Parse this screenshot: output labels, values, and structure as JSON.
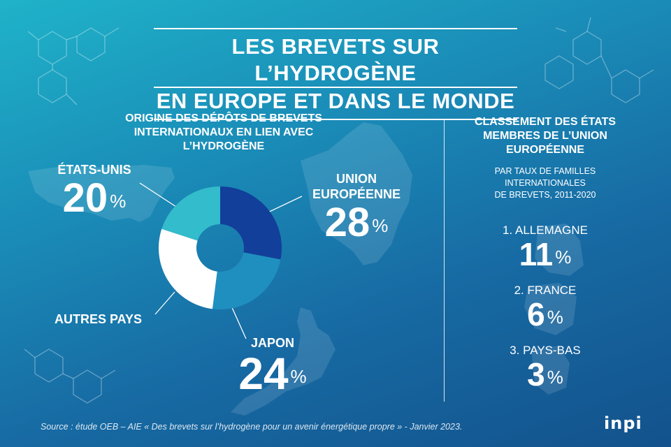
{
  "title": {
    "line1": "LES BREVETS SUR L’HYDROGÈNE",
    "line2": "EN EUROPE ET DANS LE MONDE"
  },
  "chart_data": {
    "type": "pie",
    "title": "ORIGINE DES DÉPÔTS DE BREVETS INTERNATIONAUX EN LIEN AVEC L’HYDROGÈNE",
    "title_lines": [
      "ORIGINE DES DÉPÔTS DE BREVETS",
      "INTERNATIONAUX EN LIEN AVEC",
      "L’HYDROGÈNE"
    ],
    "categories": [
      "UNION EUROPÉENNE",
      "JAPON",
      "AUTRES PAYS",
      "ÉTATS-UNIS"
    ],
    "values": [
      28,
      24,
      28,
      20
    ],
    "value_labels": [
      "28",
      "24",
      "",
      "20"
    ],
    "colors": [
      "#123f9a",
      "#1f8fbf",
      "#ffffff",
      "#33bccb"
    ],
    "donut": true
  },
  "labels": {
    "us": {
      "name": "ÉTATS-UNIS",
      "value": "20",
      "unit": "%"
    },
    "eu": {
      "name_line1": "UNION",
      "name_line2": "EUROPÉENNE",
      "value": "28",
      "unit": "%"
    },
    "jp": {
      "name": "JAPON",
      "value": "24",
      "unit": "%"
    },
    "other": {
      "name": "AUTRES PAYS"
    }
  },
  "ranking": {
    "title_lines": [
      "CLASSEMENT DES ÉTATS",
      "MEMBRES DE L’UNION",
      "EUROPÉENNE"
    ],
    "subtitle_lines": [
      "PAR TAUX DE FAMILLES",
      "INTERNATIONALES",
      "DE BREVETS, 2011-2020"
    ],
    "items": [
      {
        "label": "1. ALLEMAGNE",
        "value": "11",
        "unit": "%"
      },
      {
        "label": "2. FRANCE",
        "value": "6",
        "unit": "%"
      },
      {
        "label": "3. PAYS-BAS",
        "value": "3",
        "unit": "%"
      }
    ]
  },
  "source": "Source : étude OEB – AIE « Des brevets sur l’hydrogène pour un avenir énergétique propre » - Janvier 2023.",
  "logo": "inpi"
}
